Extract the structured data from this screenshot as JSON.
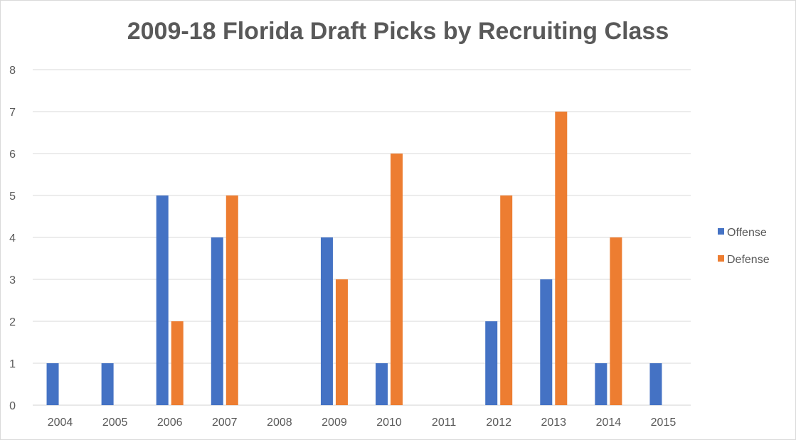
{
  "chart_data": {
    "type": "bar",
    "title": "2009-18 Florida Draft Picks by Recruiting Class",
    "xlabel": "",
    "ylabel": "",
    "categories": [
      "2004",
      "2005",
      "2006",
      "2007",
      "2008",
      "2009",
      "2010",
      "2011",
      "2012",
      "2013",
      "2014",
      "2015"
    ],
    "series": [
      {
        "name": "Offense",
        "color": "#4472c4",
        "values": [
          1,
          1,
          5,
          4,
          0,
          4,
          1,
          0,
          2,
          3,
          1,
          1
        ]
      },
      {
        "name": "Defense",
        "color": "#ed7d31",
        "values": [
          0,
          0,
          2,
          5,
          0,
          3,
          6,
          0,
          5,
          7,
          4,
          0
        ]
      }
    ],
    "ylim": [
      0,
      8
    ],
    "yticks": [
      0,
      1,
      2,
      3,
      4,
      5,
      6,
      7,
      8
    ],
    "grid": true,
    "legend": "right"
  }
}
